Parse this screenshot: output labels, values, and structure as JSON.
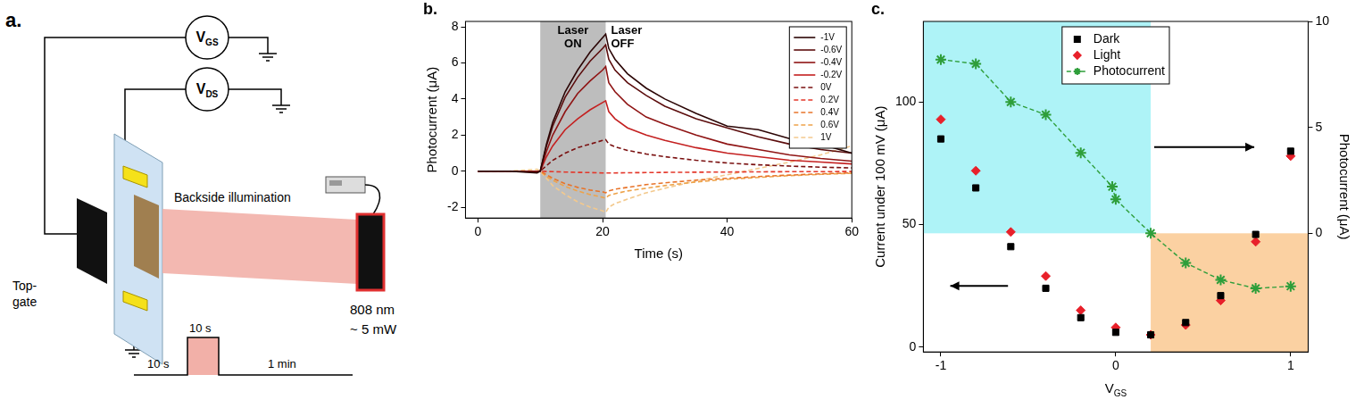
{
  "diagram": {
    "panel": "a.",
    "v_gs": {
      "text": "V",
      "sub": "GS"
    },
    "v_ds": {
      "text": "V",
      "sub": "DS"
    },
    "beam": "Backside illumination",
    "gate": [
      "Top-",
      "gate"
    ],
    "laser_lines": [
      "808 nm",
      "~ 5 mW"
    ],
    "timing": [
      "10 s",
      "10 s",
      "1 min"
    ]
  },
  "chart_data": [
    {
      "panel": "b.",
      "type": "line",
      "xlabel": "Time (s)",
      "ylabel": "Photocurrent (μA)",
      "xlim": [
        -2,
        60
      ],
      "xticks": [
        0,
        20,
        40,
        60
      ],
      "ylim": [
        -2.6,
        8.3
      ],
      "yticks": [
        -2,
        0,
        2,
        4,
        6,
        8
      ],
      "grid": false,
      "legend": "upper right",
      "shaded": {
        "x": [
          10,
          20.5
        ],
        "color": "#bdbdbd"
      },
      "annotations": [
        "Laser ON",
        "Laser OFF"
      ],
      "x": [
        0,
        5,
        9.5,
        10,
        11,
        12,
        14,
        16,
        18,
        20,
        20.5,
        21,
        22,
        24,
        27,
        30,
        35,
        40,
        45,
        50,
        55,
        60
      ],
      "series": [
        {
          "name": "-1V",
          "color": "#2b0505",
          "line_style": "solid",
          "values": [
            0,
            0,
            -0.1,
            0,
            1.5,
            2.7,
            4.4,
            5.6,
            6.6,
            7.4,
            7.6,
            6.8,
            6.2,
            5.4,
            4.6,
            4.0,
            3.2,
            2.5,
            2.3,
            1.8,
            1.5,
            1.0
          ]
        },
        {
          "name": "-0.6V",
          "color": "#5c0d0d",
          "line_style": "solid",
          "values": [
            0,
            0,
            -0.05,
            0,
            1.4,
            2.5,
            4.1,
            5.2,
            6.1,
            6.8,
            7.0,
            6.2,
            5.6,
            4.9,
            4.2,
            3.6,
            2.9,
            2.4,
            1.9,
            1.5,
            1.2,
            1.0
          ]
        },
        {
          "name": "-0.4V",
          "color": "#8f1414",
          "line_style": "solid",
          "values": [
            0,
            0,
            0,
            0,
            1.1,
            2.0,
            3.3,
            4.3,
            5.0,
            5.6,
            5.8,
            4.9,
            4.4,
            3.7,
            3.0,
            2.6,
            2.0,
            1.5,
            1.2,
            0.9,
            0.7,
            0.55
          ]
        },
        {
          "name": "-0.2V",
          "color": "#c42020",
          "line_style": "solid",
          "values": [
            0,
            0,
            0,
            0,
            0.8,
            1.4,
            2.3,
            2.9,
            3.4,
            3.8,
            3.9,
            3.3,
            2.9,
            2.4,
            2.0,
            1.7,
            1.3,
            1.0,
            0.8,
            0.6,
            0.5,
            0.4
          ]
        },
        {
          "name": "0V",
          "color": "#7a1010",
          "line_style": "dashed",
          "values": [
            0,
            0,
            0,
            0,
            0.3,
            0.6,
            1.0,
            1.3,
            1.5,
            1.7,
            1.75,
            1.5,
            1.35,
            1.15,
            0.95,
            0.8,
            0.6,
            0.45,
            0.35,
            0.28,
            0.22,
            0.18
          ]
        },
        {
          "name": "0.2V",
          "color": "#e4372a",
          "line_style": "dashed",
          "values": [
            0,
            0,
            0,
            0,
            -0.02,
            -0.03,
            -0.05,
            -0.07,
            -0.08,
            -0.1,
            -0.1,
            -0.1,
            -0.1,
            -0.09,
            -0.08,
            -0.07,
            -0.06,
            -0.05,
            -0.04,
            -0.03,
            -0.03,
            -0.02
          ]
        },
        {
          "name": "0.4V",
          "color": "#e8742a",
          "line_style": "dashed",
          "values": [
            0,
            0,
            0,
            0,
            -0.2,
            -0.4,
            -0.7,
            -0.9,
            -1.05,
            -1.15,
            -1.2,
            -1.1,
            -1.0,
            -0.9,
            -0.75,
            -0.65,
            -0.5,
            -0.4,
            -0.3,
            -0.22,
            -0.15,
            -0.1
          ]
        },
        {
          "name": "0.6V",
          "color": "#eea34a",
          "line_style": "dashed",
          "values": [
            0,
            0,
            0,
            0,
            -0.3,
            -0.5,
            -0.85,
            -1.1,
            -1.3,
            -1.45,
            -1.5,
            -1.35,
            -1.25,
            -1.1,
            -0.95,
            -0.8,
            -0.6,
            -0.45,
            -0.35,
            -0.25,
            -0.18,
            -0.12
          ]
        },
        {
          "name": "1V",
          "color": "#f3c98d",
          "line_style": "dashed",
          "values": [
            0,
            0,
            0.1,
            0,
            -0.4,
            -0.8,
            -1.3,
            -1.7,
            -2.0,
            -2.2,
            -2.3,
            -2.0,
            -1.8,
            -1.55,
            -1.2,
            -0.95,
            -0.55,
            -0.2,
            0.15,
            0.5,
            0.9,
            1.4
          ]
        }
      ]
    },
    {
      "panel": "c.",
      "type": "scatter",
      "xlabel": {
        "text": "V",
        "sub": "GS"
      },
      "ylabel": "Current under 100 mV (μA)",
      "y2label": "Photocurrent (μA)",
      "xlim": [
        -1.1,
        1.1
      ],
      "xticks": [
        -1,
        0,
        1
      ],
      "ylim": [
        -2,
        133
      ],
      "yticks": [
        0,
        50,
        100
      ],
      "y2lim": [
        -5.6,
        10
      ],
      "y2ticks": [
        0,
        5,
        10
      ],
      "grid": false,
      "legend": "upper center",
      "regions": [
        {
          "x": [
            -1.1,
            0.2
          ],
          "y2": [
            0,
            10
          ],
          "color": "#aef3f7"
        },
        {
          "x": [
            0.2,
            1.1
          ],
          "y2": [
            -5.6,
            0
          ],
          "color": "#fbd1a2"
        }
      ],
      "series": [
        {
          "name": "Dark",
          "color": "#000000",
          "marker": "square",
          "x": [
            -1,
            -0.8,
            -0.6,
            -0.4,
            -0.2,
            0,
            0.2,
            0.4,
            0.6,
            0.8,
            1
          ],
          "values": [
            85,
            65,
            41,
            24,
            12,
            6,
            5,
            10,
            21,
            46,
            80
          ]
        },
        {
          "name": "Light",
          "color": "#e8202a",
          "marker": "diamond",
          "x": [
            -1,
            -0.8,
            -0.6,
            -0.4,
            -0.2,
            0,
            0.2,
            0.4,
            0.6,
            0.8,
            1
          ],
          "values": [
            93,
            72,
            47,
            29,
            15,
            8,
            5,
            9,
            19,
            43,
            78
          ]
        },
        {
          "name": "Photocurrent",
          "color": "#2e9e3a",
          "marker": "star",
          "type": "line",
          "line_style": "dashed",
          "axis": "y2",
          "x": [
            -1,
            -0.8,
            -0.6,
            -0.4,
            -0.2,
            -0.02,
            0,
            0.2,
            0.4,
            0.6,
            0.8,
            1
          ],
          "values": [
            8.2,
            8.0,
            6.2,
            5.6,
            3.8,
            2.2,
            1.6,
            0,
            -1.4,
            -2.2,
            -2.6,
            -2.5
          ]
        }
      ]
    }
  ]
}
